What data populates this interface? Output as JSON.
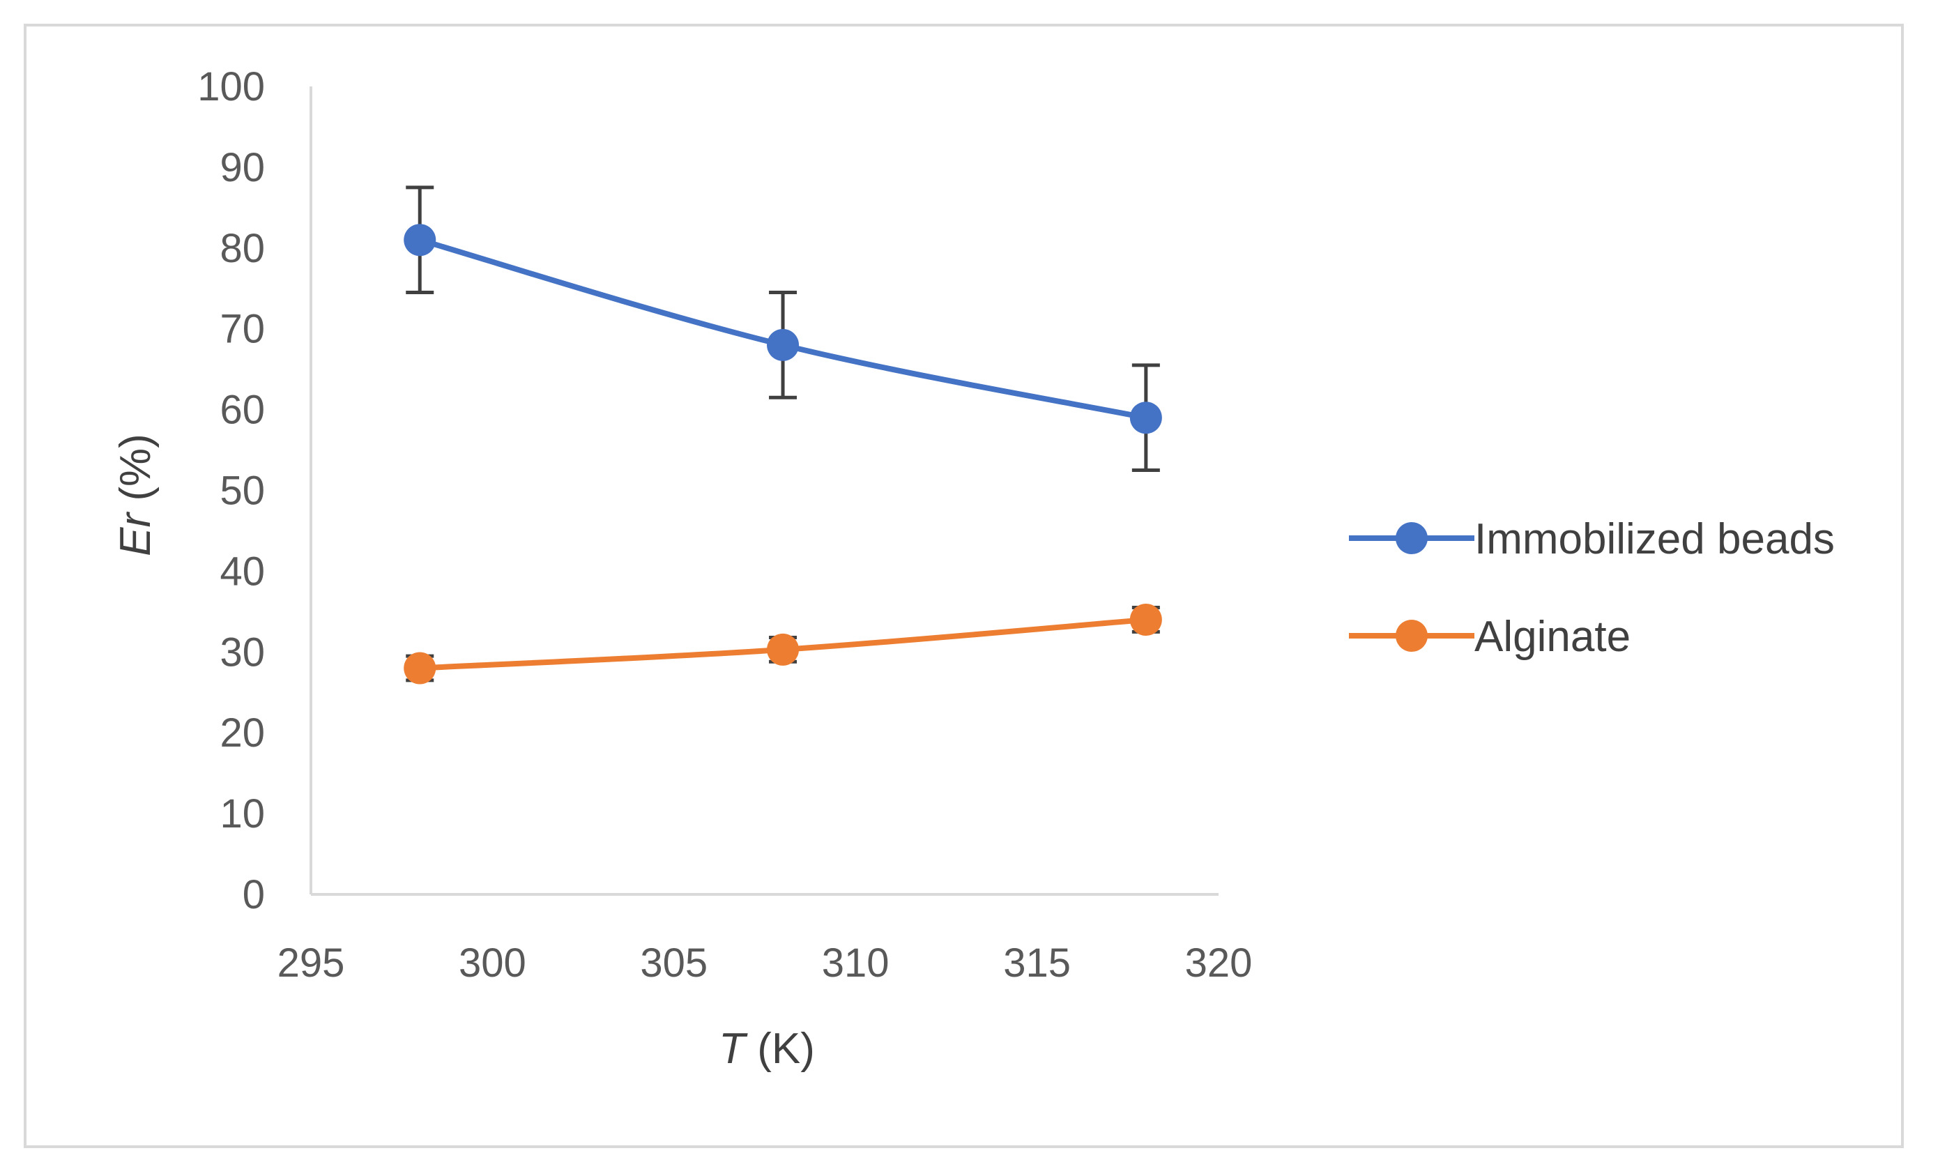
{
  "chart_data": {
    "type": "line",
    "title": "",
    "xlabel": {
      "symbol": "T",
      "unit": " (K)"
    },
    "ylabel": {
      "symbol": "Er",
      "unit": " (%)"
    },
    "xlim": [
      295,
      320
    ],
    "ylim": [
      0,
      100
    ],
    "xticks": [
      "295",
      "300",
      "305",
      "310",
      "315",
      "320"
    ],
    "yticks": [
      "0",
      "10",
      "20",
      "30",
      "40",
      "50",
      "60",
      "70",
      "80",
      "90",
      "100"
    ],
    "x": [
      298,
      308,
      318
    ],
    "legend_position": "right",
    "series": [
      {
        "name": "Immobilized beads",
        "color": "#4472c4",
        "values": [
          81,
          68,
          59
        ],
        "errors": [
          6.5,
          6.5,
          6.5
        ]
      },
      {
        "name": "Alginate",
        "color": "#ed7d31",
        "values": [
          28,
          30.3,
          34
        ],
        "errors": [
          1.5,
          1.5,
          1.5
        ]
      }
    ],
    "error_bar_color": "#404040",
    "axis_color": "#d9d9d9"
  }
}
